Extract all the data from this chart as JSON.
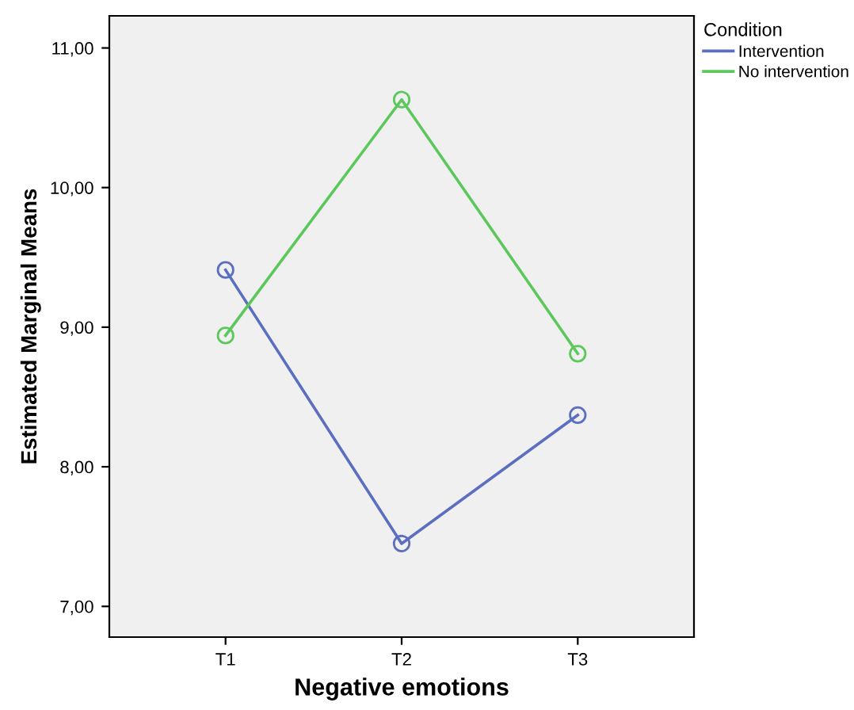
{
  "chart_data": {
    "type": "line",
    "xlabel": "Negative emotions",
    "ylabel": "Estimated Marginal Means",
    "legend_title": "Condition",
    "categories": [
      "T1",
      "T2",
      "T3"
    ],
    "series": [
      {
        "name": "Intervention",
        "color": "#5b6ebf",
        "values": [
          9.41,
          7.45,
          8.37
        ]
      },
      {
        "name": "No intervention",
        "color": "#5cc85c",
        "values": [
          8.94,
          10.63,
          8.81
        ]
      }
    ],
    "ylim": [
      6.78,
      11.23
    ],
    "yticks": [
      {
        "value": 7,
        "label": "7,00"
      },
      {
        "value": 8,
        "label": "8,00"
      },
      {
        "value": 9,
        "label": "9,00"
      },
      {
        "value": 10,
        "label": "10,00"
      },
      {
        "value": 11,
        "label": "11,00"
      }
    ],
    "marker": "circle",
    "line_style": "solid",
    "grid": false,
    "legend": "top right"
  }
}
